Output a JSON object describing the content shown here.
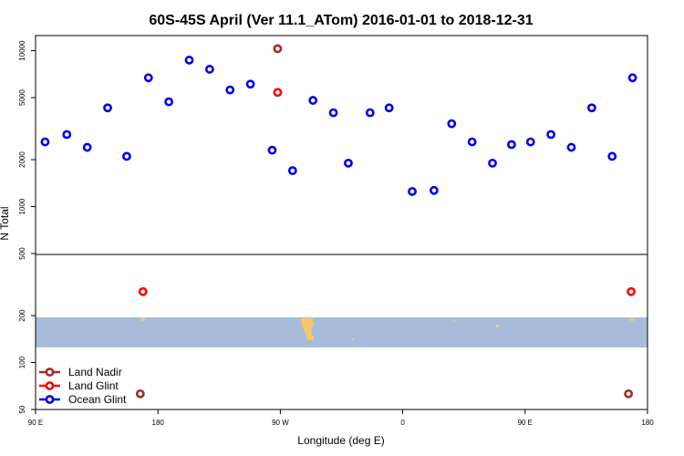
{
  "chart_data": {
    "type": "scatter",
    "title": "60S-45S April (Ver 11.1_ATom)   2016-01-01 to 2018-12-31",
    "xlabel": "Longitude (deg E)",
    "ylabel": "N Total",
    "x_ticks": [
      {
        "value": 90,
        "label": "90 E"
      },
      {
        "value": 180,
        "label": "180"
      },
      {
        "value": 270,
        "label": "90 W"
      },
      {
        "value": 360,
        "label": "0"
      },
      {
        "value": 450,
        "label": "90 E"
      },
      {
        "value": 540,
        "label": "180"
      }
    ],
    "xlim": [
      90,
      540
    ],
    "ylim": [
      50,
      12500
    ],
    "y_scale": "log",
    "y_ticks": [
      50,
      100,
      200,
      500,
      1000,
      2000,
      5000,
      10000
    ],
    "legend_position": "bottom-left",
    "series": [
      {
        "name": "Land Nadir",
        "color": "#a52a2a",
        "points": [
          [
            268,
            10300
          ],
          [
            167,
            63
          ],
          [
            526,
            63
          ]
        ]
      },
      {
        "name": "Land Glint",
        "color": "#ff0000",
        "points": [
          [
            268,
            5400
          ],
          [
            169,
            285
          ],
          [
            528,
            285
          ]
        ]
      },
      {
        "name": "Ocean Glint",
        "color": "#0000ee",
        "points": [
          [
            97,
            2600
          ],
          [
            113,
            2900
          ],
          [
            128,
            2400
          ],
          [
            143,
            4300
          ],
          [
            157,
            2100
          ],
          [
            173,
            6700
          ],
          [
            188,
            4700
          ],
          [
            203,
            8700
          ],
          [
            218,
            7600
          ],
          [
            233,
            5600
          ],
          [
            248,
            6100
          ],
          [
            264,
            2300
          ],
          [
            279,
            1700
          ],
          [
            294,
            4800
          ],
          [
            309,
            4000
          ],
          [
            320,
            1900
          ],
          [
            336,
            4000
          ],
          [
            350,
            4300
          ],
          [
            367,
            1250
          ],
          [
            383,
            1270
          ],
          [
            396,
            3400
          ],
          [
            411,
            2600
          ],
          [
            426,
            1900
          ],
          [
            440,
            2500
          ],
          [
            454,
            2600
          ],
          [
            469,
            2900
          ],
          [
            484,
            2400
          ],
          [
            499,
            4300
          ],
          [
            514,
            2100
          ],
          [
            529,
            6700
          ]
        ]
      }
    ]
  }
}
